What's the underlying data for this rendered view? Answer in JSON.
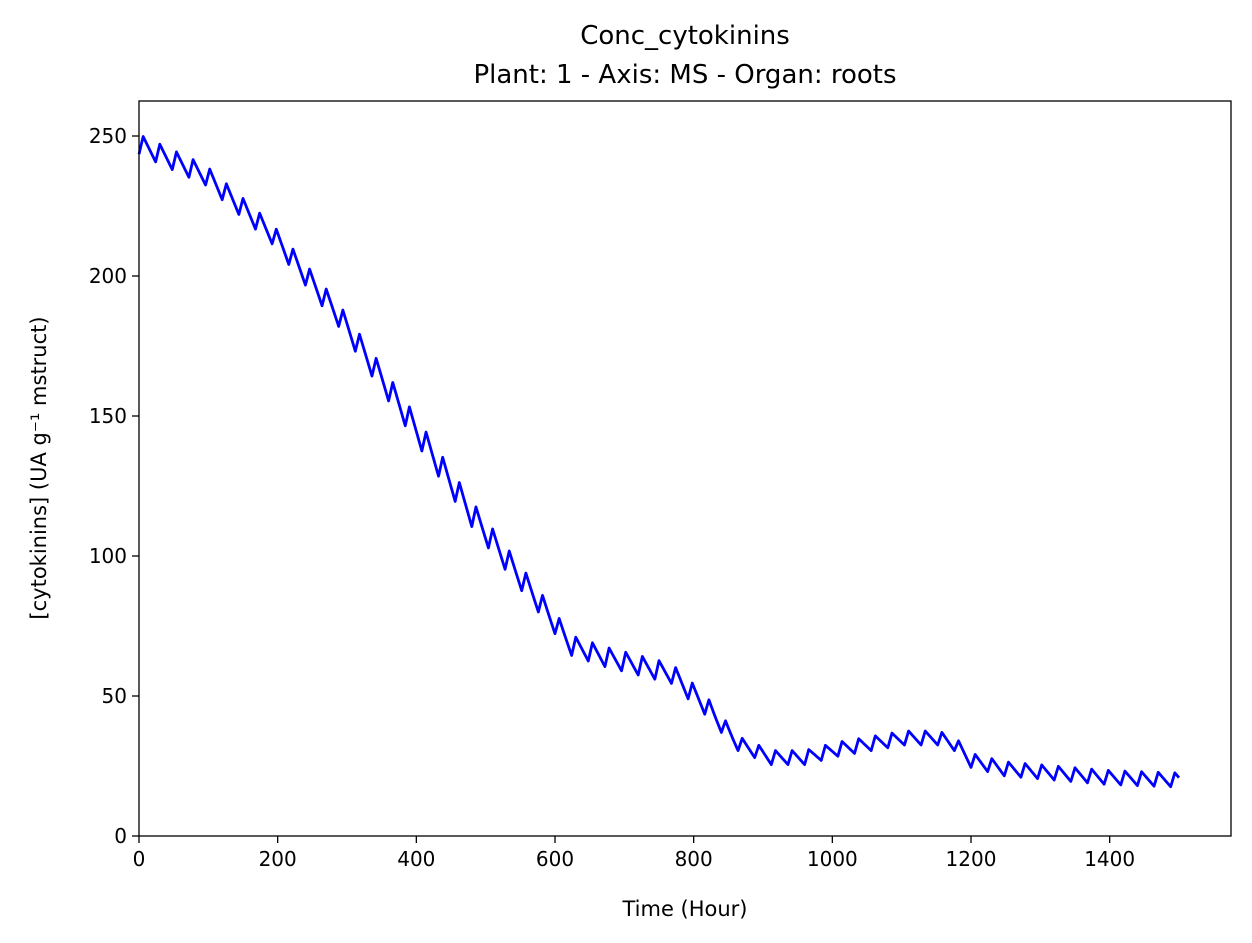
{
  "chart_data": {
    "type": "line",
    "title": "Conc_cytokinins",
    "subtitle": "Plant: 1 - Axis: MS - Organ: roots",
    "xlabel": "Time (Hour)",
    "ylabel": "[cytokinins] (UA g⁻¹ mstruct)",
    "xlim": [
      0,
      1575
    ],
    "ylim": [
      0,
      262.5
    ],
    "xticks": [
      0,
      200,
      400,
      600,
      800,
      1000,
      1200,
      1400
    ],
    "yticks": [
      0,
      50,
      100,
      150,
      200,
      250
    ],
    "grid": false,
    "legend": "none",
    "series": [
      {
        "color": "#0000ff",
        "period_hours": 24,
        "x": [
          0,
          96,
          192,
          288,
          384,
          480,
          576,
          624,
          672,
          720,
          768,
          816,
          864,
          912,
          960,
          1008,
          1056,
          1104,
          1152,
          1176,
          1200,
          1248,
          1296,
          1344,
          1392,
          1440,
          1500
        ],
        "y": [
          247,
          236,
          215,
          186,
          151,
          115,
          84,
          68,
          64,
          61,
          58,
          47,
          33,
          28,
          28,
          31,
          33,
          35,
          35,
          33,
          27,
          24,
          23,
          22,
          21,
          20.5,
          20
        ],
        "amplitude": [
          3.5,
          3.5,
          3.5,
          4,
          4.5,
          4.5,
          4,
          3.5,
          3.5,
          3.5,
          3.5,
          3.5,
          2.5,
          2.5,
          2.5,
          2.5,
          2.5,
          2.5,
          2.5,
          2.5,
          2.5,
          2.5,
          2.5,
          2.5,
          2.5,
          2.5,
          2.5
        ]
      }
    ]
  }
}
